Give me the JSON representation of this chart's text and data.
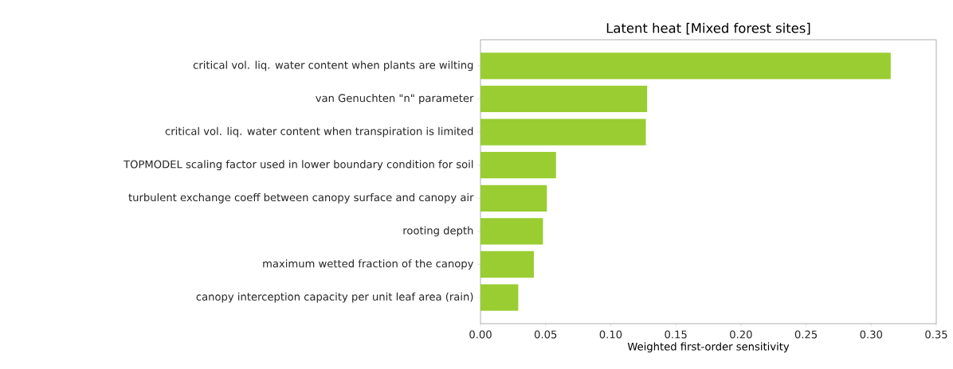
{
  "chart_data": {
    "type": "bar",
    "orientation": "horizontal",
    "title": "Latent heat [Mixed forest sites]",
    "xlabel": "Weighted first-order sensitivity",
    "categories": [
      "critical vol. liq. water content when plants are wilting",
      "van Genuchten \"n\" parameter",
      "critical vol. liq. water content when transpiration is limited",
      "TOPMODEL scaling factor used in lower boundary condition for soil",
      "turbulent exchange coeff between canopy surface and canopy air",
      "rooting depth",
      "maximum wetted fraction of the canopy",
      "canopy interception capacity per unit leaf area (rain)"
    ],
    "values": [
      0.315,
      0.128,
      0.127,
      0.058,
      0.051,
      0.048,
      0.041,
      0.029
    ],
    "color": "#9acd32",
    "xlim": [
      0,
      0.35
    ],
    "xticks": [
      {
        "value": 0,
        "label": "0.00"
      },
      {
        "value": 0.05,
        "label": "0.05"
      },
      {
        "value": 0.1,
        "label": "0.10"
      },
      {
        "value": 0.15,
        "label": "0.15"
      },
      {
        "value": 0.2,
        "label": "0.20"
      },
      {
        "value": 0.25,
        "label": "0.25"
      },
      {
        "value": 0.3,
        "label": "0.30"
      },
      {
        "value": 0.35,
        "label": "0.35"
      }
    ],
    "grid": false
  }
}
